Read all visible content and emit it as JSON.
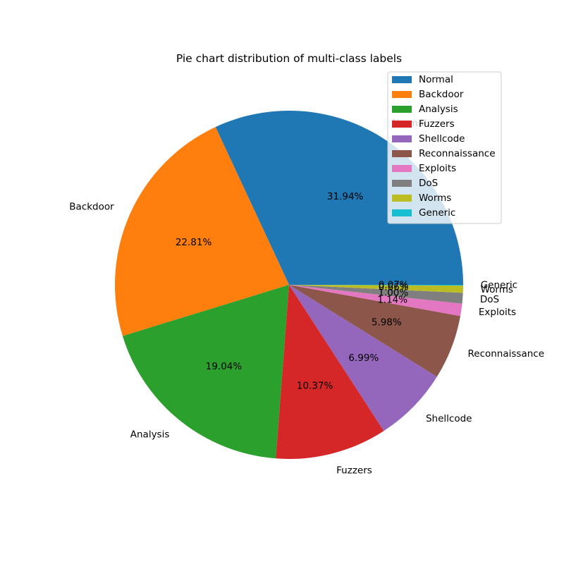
{
  "chart_data": {
    "type": "pie",
    "title": "Pie chart distribution of multi-class labels",
    "legend_position": "top-right",
    "start_angle_deg": 0,
    "direction": "counterclockwise",
    "slices": [
      {
        "label": "Normal",
        "percent": 31.94,
        "percent_text": "31.94%",
        "color": "#1f77b4"
      },
      {
        "label": "Backdoor",
        "percent": 22.81,
        "percent_text": "22.81%",
        "color": "#ff7f0e"
      },
      {
        "label": "Analysis",
        "percent": 19.04,
        "percent_text": "19.04%",
        "color": "#2ca02c"
      },
      {
        "label": "Fuzzers",
        "percent": 10.37,
        "percent_text": "10.37%",
        "color": "#d62728"
      },
      {
        "label": "Shellcode",
        "percent": 6.99,
        "percent_text": "6.99%",
        "color": "#9467bd"
      },
      {
        "label": "Reconnaissance",
        "percent": 5.98,
        "percent_text": "5.98%",
        "color": "#8c564b"
      },
      {
        "label": "Exploits",
        "percent": 1.14,
        "percent_text": "1.14%",
        "color": "#e377c2"
      },
      {
        "label": "DoS",
        "percent": 1.0,
        "percent_text": "1.00%",
        "color": "#7f7f7f"
      },
      {
        "label": "Worms",
        "percent": 0.66,
        "percent_text": "0.66%",
        "color": "#bcbd22"
      },
      {
        "label": "Generic",
        "percent": 0.07,
        "percent_text": "0.07%",
        "color": "#17becf"
      }
    ]
  }
}
